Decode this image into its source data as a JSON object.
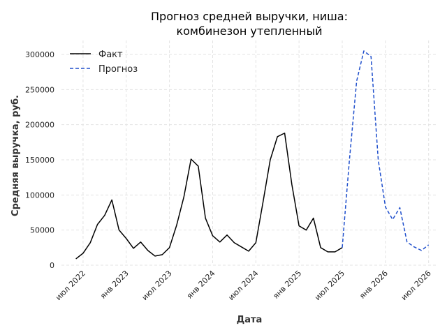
{
  "chart_data": {
    "type": "line",
    "title_lines": [
      "Прогноз средней выручки, ниша:",
      "комбинезон утепленный"
    ],
    "xlabel": "Дата",
    "ylabel": "Средняя выручка, руб.",
    "ylim": [
      0,
      320000
    ],
    "yticks": [
      0,
      50000,
      100000,
      150000,
      200000,
      250000,
      300000
    ],
    "xlim": [
      "2022-04",
      "2026-08"
    ],
    "xticks": [
      {
        "date": "2022-07",
        "label": "июл 2022"
      },
      {
        "date": "2023-01",
        "label": "янв 2023"
      },
      {
        "date": "2023-07",
        "label": "июл 2023"
      },
      {
        "date": "2024-01",
        "label": "янв 2024"
      },
      {
        "date": "2024-07",
        "label": "июл 2024"
      },
      {
        "date": "2025-01",
        "label": "янв 2025"
      },
      {
        "date": "2025-07",
        "label": "июл 2025"
      },
      {
        "date": "2026-01",
        "label": "янв 2026"
      },
      {
        "date": "2026-07",
        "label": "июл 2026"
      }
    ],
    "grid": true,
    "legend_position": "top-left",
    "series": [
      {
        "name": "Факт",
        "color": "#000000",
        "style": "solid",
        "points": [
          [
            "2022-06",
            9000
          ],
          [
            "2022-07",
            17000
          ],
          [
            "2022-08",
            32000
          ],
          [
            "2022-09",
            58000
          ],
          [
            "2022-10",
            71000
          ],
          [
            "2022-11",
            93000
          ],
          [
            "2022-12",
            50000
          ],
          [
            "2023-01",
            38000
          ],
          [
            "2023-02",
            24000
          ],
          [
            "2023-03",
            33000
          ],
          [
            "2023-04",
            21000
          ],
          [
            "2023-05",
            13000
          ],
          [
            "2023-06",
            15000
          ],
          [
            "2023-07",
            25000
          ],
          [
            "2023-08",
            57000
          ],
          [
            "2023-09",
            97000
          ],
          [
            "2023-10",
            151000
          ],
          [
            "2023-11",
            141000
          ],
          [
            "2023-12",
            67000
          ],
          [
            "2024-01",
            42000
          ],
          [
            "2024-02",
            33000
          ],
          [
            "2024-03",
            43000
          ],
          [
            "2024-04",
            32000
          ],
          [
            "2024-05",
            26000
          ],
          [
            "2024-06",
            20000
          ],
          [
            "2024-07",
            32000
          ],
          [
            "2024-08",
            90000
          ],
          [
            "2024-09",
            150000
          ],
          [
            "2024-10",
            183000
          ],
          [
            "2024-11",
            188000
          ],
          [
            "2024-12",
            115000
          ],
          [
            "2025-01",
            56000
          ],
          [
            "2025-02",
            50000
          ],
          [
            "2025-03",
            67000
          ],
          [
            "2025-04",
            25000
          ],
          [
            "2025-05",
            19000
          ],
          [
            "2025-06",
            19000
          ],
          [
            "2025-07",
            25000
          ]
        ]
      },
      {
        "name": "Прогноз",
        "color": "#1f4fcc",
        "style": "dashed",
        "points": [
          [
            "2025-07",
            25000
          ],
          [
            "2025-08",
            150000
          ],
          [
            "2025-09",
            262000
          ],
          [
            "2025-10",
            305000
          ],
          [
            "2025-11",
            297000
          ],
          [
            "2025-12",
            150000
          ],
          [
            "2026-01",
            83000
          ],
          [
            "2026-02",
            65000
          ],
          [
            "2026-03",
            82000
          ],
          [
            "2026-04",
            33000
          ],
          [
            "2026-05",
            26000
          ],
          [
            "2026-06",
            21000
          ],
          [
            "2026-07",
            29000
          ]
        ]
      }
    ]
  }
}
